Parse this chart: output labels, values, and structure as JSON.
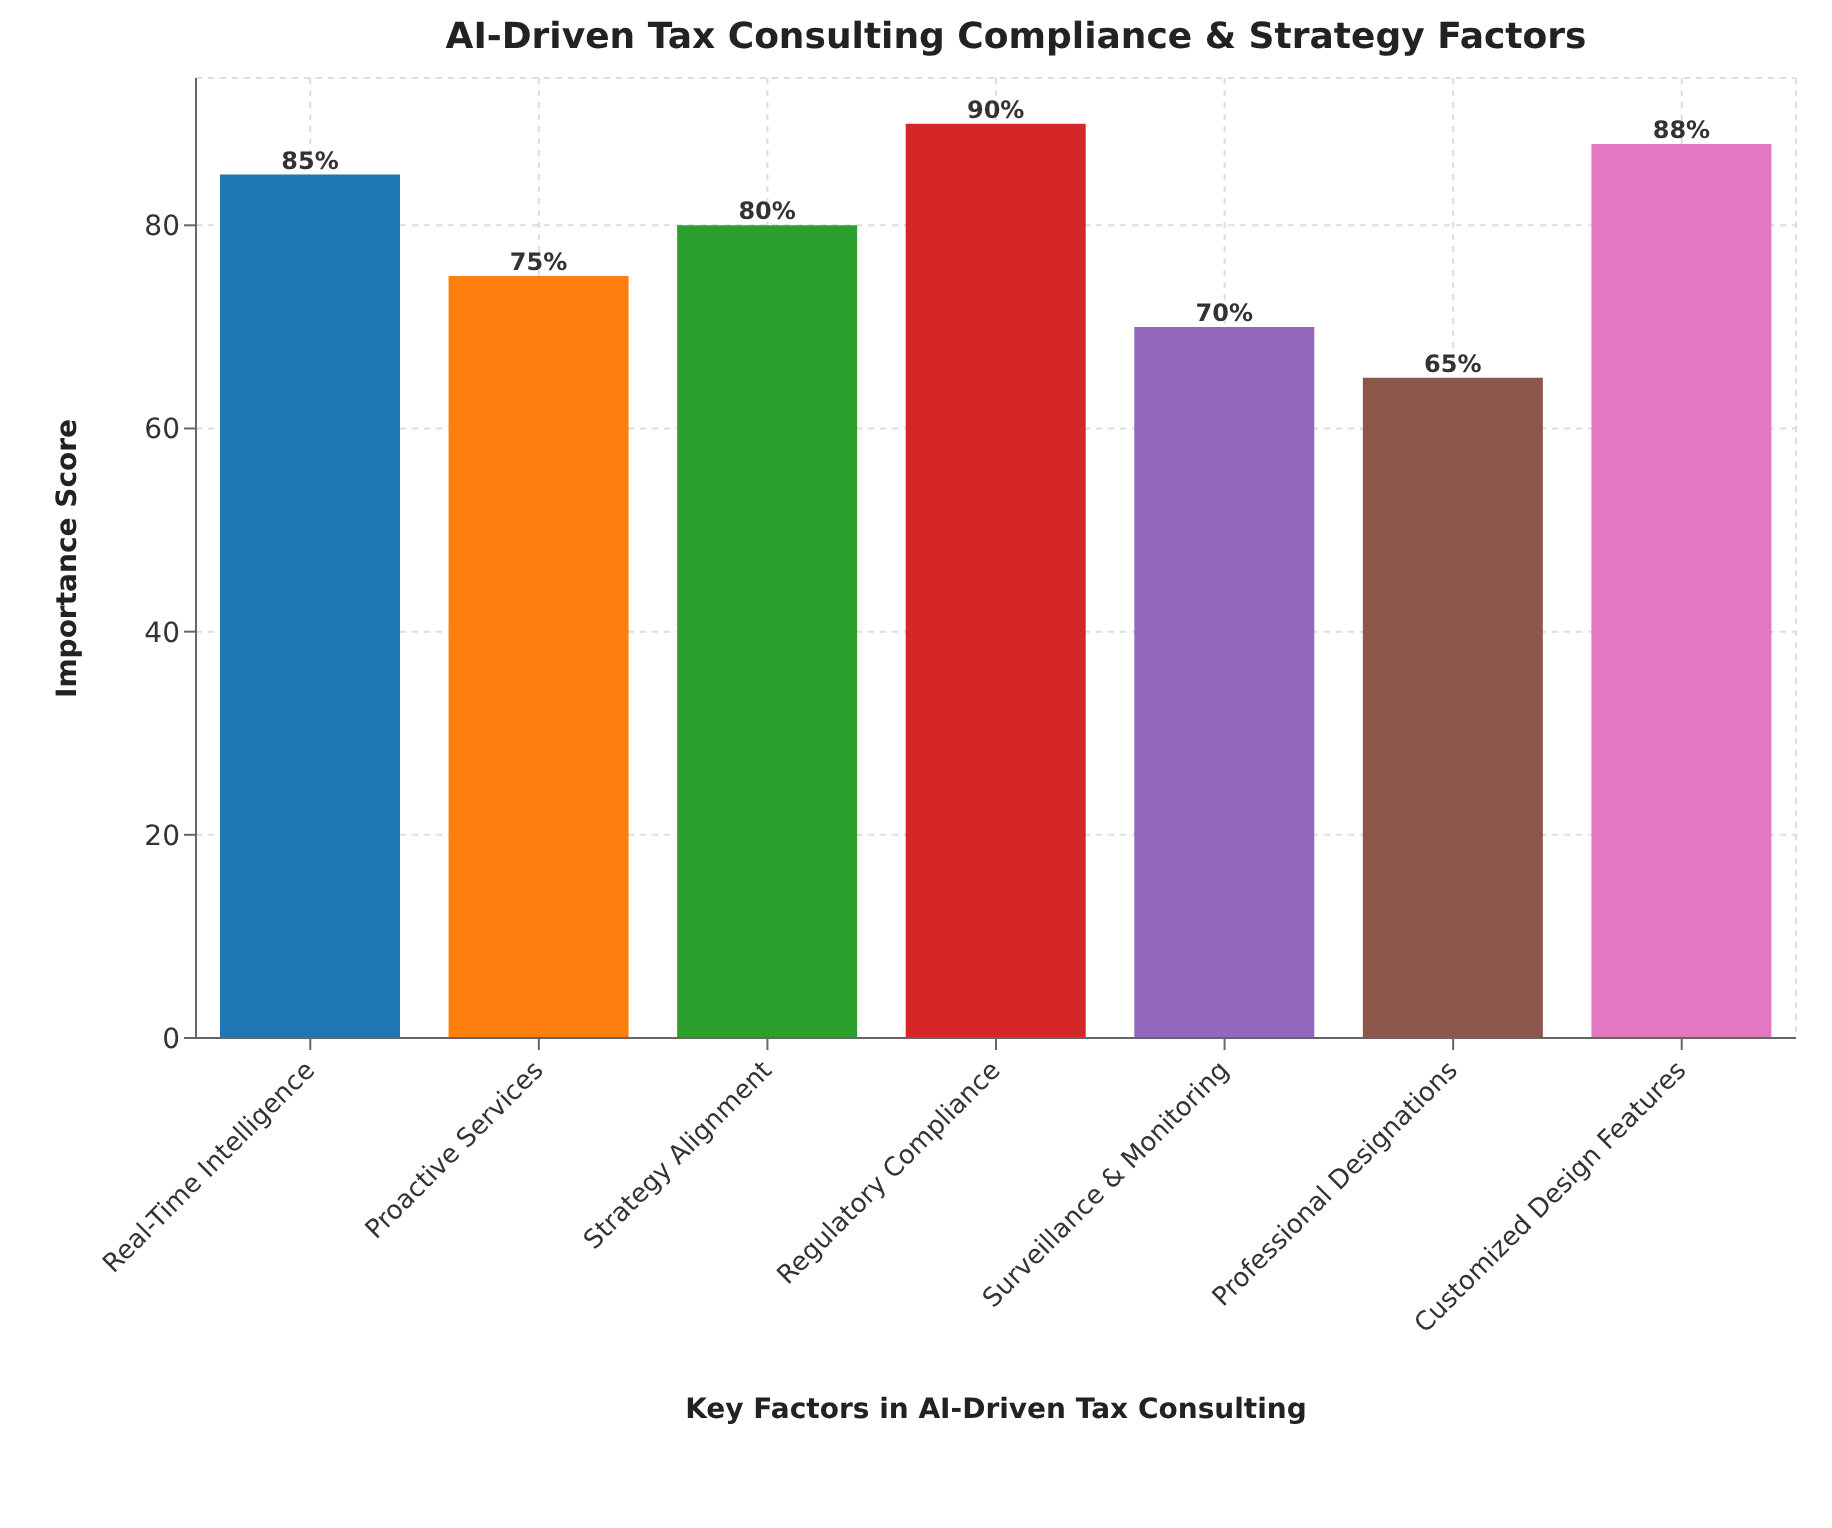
{
  "chart_data": {
    "type": "bar",
    "title": "AI-Driven Tax Consulting Compliance & Strategy Factors",
    "xlabel": "Key Factors in AI-Driven Tax Consulting",
    "ylabel": "Importance Score",
    "categories": [
      "Real-Time Intelligence",
      "Proactive Services",
      "Strategy Alignment",
      "Regulatory Compliance",
      "Surveillance & Monitoring",
      "Professional Designations",
      "Customized Design Features"
    ],
    "values": [
      85,
      75,
      80,
      90,
      70,
      65,
      88
    ],
    "colors": [
      "#1f77b4",
      "#ff7f0e",
      "#2ca02c",
      "#d62728",
      "#9467bd",
      "#8c564b",
      "#e377c2"
    ],
    "value_labels": [
      "85%",
      "75%",
      "80%",
      "90%",
      "70%",
      "65%",
      "88%"
    ],
    "ylim": [
      0,
      94.5
    ],
    "yticks": [
      0,
      20,
      40,
      60,
      80
    ],
    "grid": true
  }
}
